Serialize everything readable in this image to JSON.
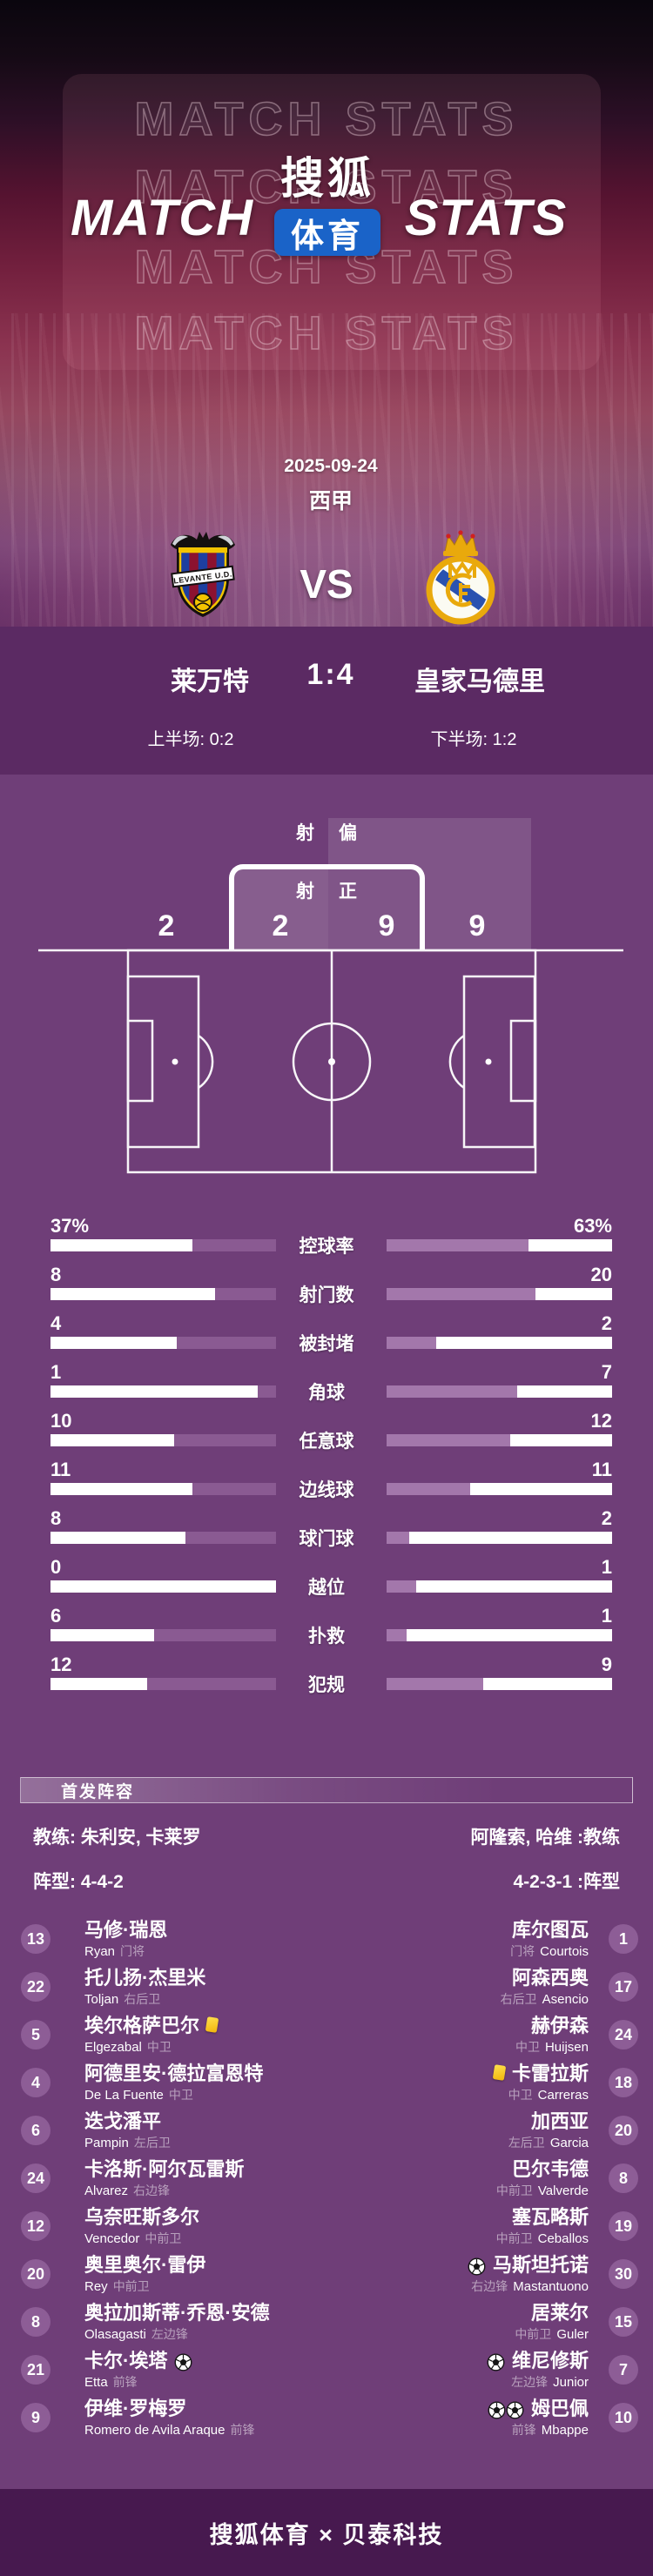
{
  "colors": {
    "bg_main": "#6f3e78",
    "bg_score_strip": "#5b2a63",
    "bg_footer": "#47194f",
    "sohu_blue": "#1a63c8",
    "bar_track": "#ffffff",
    "bar_left_fill": "#8a5a92",
    "bar_right_fill": "#a377ab",
    "card_yellow": "#f1b50b",
    "badge_purple": "#8d5d96"
  },
  "header": {
    "watermark": "MATCH STATS",
    "brand_left": "MATCH",
    "brand_right": "STATS",
    "logo_top": "搜狐",
    "logo_bottom": "体育"
  },
  "match": {
    "date": "2025-09-24",
    "league": "西甲",
    "vs": "VS",
    "home_name": "莱万特",
    "away_name": "皇家马德里",
    "home_logo_alt": "levante-crest",
    "away_logo_alt": "real-madrid-crest",
    "score": "1:4",
    "half1": "上半场: 0:2",
    "half2": "下半场: 1:2"
  },
  "shots_graphic": {
    "off_label_a": "射",
    "off_label_b": "偏",
    "on_label_a": "射",
    "on_label_b": "正",
    "home_off": "2",
    "home_on": "2",
    "away_on": "9",
    "away_off": "9"
  },
  "stats": {
    "rows": [
      {
        "label": "控球率",
        "left": "37%",
        "right": "63%",
        "left_fill": 0.37,
        "right_fill": 0.63
      },
      {
        "label": "射门数",
        "left": "8",
        "right": "20",
        "left_fill": 0.27,
        "right_fill": 0.66
      },
      {
        "label": "被封堵",
        "left": "4",
        "right": "2",
        "left_fill": 0.44,
        "right_fill": 0.22
      },
      {
        "label": "角球",
        "left": "1",
        "right": "7",
        "left_fill": 0.08,
        "right_fill": 0.58
      },
      {
        "label": "任意球",
        "left": "10",
        "right": "12",
        "left_fill": 0.45,
        "right_fill": 0.55
      },
      {
        "label": "边线球",
        "left": "11",
        "right": "11",
        "left_fill": 0.37,
        "right_fill": 0.37
      },
      {
        "label": "球门球",
        "left": "8",
        "right": "2",
        "left_fill": 0.4,
        "right_fill": 0.1
      },
      {
        "label": "越位",
        "left": "0",
        "right": "1",
        "left_fill": 0.0,
        "right_fill": 0.13
      },
      {
        "label": "扑救",
        "left": "6",
        "right": "1",
        "left_fill": 0.54,
        "right_fill": 0.09
      },
      {
        "label": "犯规",
        "left": "12",
        "right": "9",
        "left_fill": 0.57,
        "right_fill": 0.43
      }
    ]
  },
  "chart_data": [
    {
      "type": "bar",
      "title": "莱万特 1:4 皇家马德里 比赛数据",
      "categories": [
        "控球率",
        "射门数",
        "被封堵",
        "角球",
        "任意球",
        "边线球",
        "球门球",
        "越位",
        "扑救",
        "犯规"
      ],
      "series": [
        {
          "name": "莱万特",
          "values": [
            37,
            8,
            4,
            1,
            10,
            11,
            8,
            0,
            6,
            12
          ]
        },
        {
          "name": "皇家马德里",
          "values": [
            63,
            20,
            2,
            7,
            12,
            11,
            2,
            1,
            1,
            9
          ]
        }
      ],
      "legend_position": "mirrored-bars-center-labels",
      "grid": false
    },
    {
      "type": "bar",
      "title": "射门分布",
      "categories": [
        "射偏",
        "射正"
      ],
      "series": [
        {
          "name": "莱万特",
          "values": [
            2,
            2
          ]
        },
        {
          "name": "皇家马德里",
          "values": [
            9,
            9
          ]
        }
      ]
    }
  ],
  "lineup": {
    "section_title": "首发阵容",
    "home_coach": "教练: 朱利安, 卡莱罗",
    "away_coach": "阿隆索, 哈维 :教练",
    "home_formation": "阵型: 4-4-2",
    "away_formation": "4-2-3-1 :阵型",
    "players": [
      {
        "home": {
          "num": "13",
          "cn": "马修·瑞恩",
          "en": "Ryan",
          "pos": "门将",
          "goals": 0,
          "card": false
        },
        "away": {
          "num": "1",
          "cn": "库尔图瓦",
          "en": "Courtois",
          "pos": "门将",
          "goals": 0,
          "card": false
        }
      },
      {
        "home": {
          "num": "22",
          "cn": "托儿扬·杰里米",
          "en": "Toljan",
          "pos": "右后卫",
          "goals": 0,
          "card": false
        },
        "away": {
          "num": "17",
          "cn": "阿森西奥",
          "en": "Asencio",
          "pos": "右后卫",
          "goals": 0,
          "card": false
        }
      },
      {
        "home": {
          "num": "5",
          "cn": "埃尔格萨巴尔",
          "en": "Elgezabal",
          "pos": "中卫",
          "goals": 0,
          "card": true
        },
        "away": {
          "num": "24",
          "cn": "赫伊森",
          "en": "Huijsen",
          "pos": "中卫",
          "goals": 0,
          "card": false
        }
      },
      {
        "home": {
          "num": "4",
          "cn": "阿德里安·德拉富恩特",
          "en": "De La Fuente",
          "pos": "中卫",
          "goals": 0,
          "card": false
        },
        "away": {
          "num": "18",
          "cn": "卡雷拉斯",
          "en": "Carreras",
          "pos": "中卫",
          "goals": 0,
          "card": true
        }
      },
      {
        "home": {
          "num": "6",
          "cn": "迭戈潘平",
          "en": "Pampin",
          "pos": "左后卫",
          "goals": 0,
          "card": false
        },
        "away": {
          "num": "20",
          "cn": "加西亚",
          "en": "Garcia",
          "pos": "左后卫",
          "goals": 0,
          "card": false
        }
      },
      {
        "home": {
          "num": "24",
          "cn": "卡洛斯·阿尔瓦雷斯",
          "en": "Alvarez",
          "pos": "右边锋",
          "goals": 0,
          "card": false
        },
        "away": {
          "num": "8",
          "cn": "巴尔韦德",
          "en": "Valverde",
          "pos": "中前卫",
          "goals": 0,
          "card": false
        }
      },
      {
        "home": {
          "num": "12",
          "cn": "乌奈旺斯多尔",
          "en": "Vencedor",
          "pos": "中前卫",
          "goals": 0,
          "card": false
        },
        "away": {
          "num": "19",
          "cn": "塞瓦略斯",
          "en": "Ceballos",
          "pos": "中前卫",
          "goals": 0,
          "card": false
        }
      },
      {
        "home": {
          "num": "20",
          "cn": "奥里奥尔·雷伊",
          "en": "Rey",
          "pos": "中前卫",
          "goals": 0,
          "card": false
        },
        "away": {
          "num": "30",
          "cn": "马斯坦托诺",
          "en": "Mastantuono",
          "pos": "右边锋",
          "goals": 1,
          "card": false
        }
      },
      {
        "home": {
          "num": "8",
          "cn": "奥拉加斯蒂·乔恩·安德",
          "en": "Olasagasti",
          "pos": "左边锋",
          "goals": 0,
          "card": false
        },
        "away": {
          "num": "15",
          "cn": "居莱尔",
          "en": "Guler",
          "pos": "中前卫",
          "goals": 0,
          "card": false
        }
      },
      {
        "home": {
          "num": "21",
          "cn": "卡尔·埃塔",
          "en": "Etta",
          "pos": "前锋",
          "goals": 1,
          "card": false
        },
        "away": {
          "num": "7",
          "cn": "维尼修斯",
          "en": "Junior",
          "pos": "左边锋",
          "goals": 1,
          "card": false
        }
      },
      {
        "home": {
          "num": "9",
          "cn": "伊维·罗梅罗",
          "en": "Romero de Avila Araque",
          "pos": "前锋",
          "goals": 0,
          "card": false
        },
        "away": {
          "num": "10",
          "cn": "姆巴佩",
          "en": "Mbappe",
          "pos": "前锋",
          "goals": 2,
          "card": false
        }
      }
    ]
  },
  "footer": {
    "text": "搜狐体育 × 贝泰科技"
  }
}
